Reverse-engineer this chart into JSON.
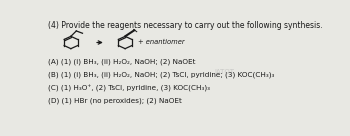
{
  "title": "(4) Provide the reagents necessary to carry out the following synthesis.",
  "answer_A": "(A) (1) (i) BH₃, (ii) H₂O₂, NaOH; (2) NaOEt",
  "answer_B": "(B) (1) (i) BH₃, (ii) H₂O₂, NaOH; (2) TsCl, pyridine; (3) KOC(CH₃)₃",
  "answer_C": "(C) (1) H₃O⁺, (2) TsCl, pyridine, (3) KOC(CH₃)₃",
  "answer_D": "(D) (1) HBr (no peroxides); (2) NaOEt",
  "enantiomer_label": "+ enantiomer",
  "bg_color": "#e8e8e3",
  "text_color": "#1a1a1a",
  "title_fontsize": 5.5,
  "body_fontsize": 5.2,
  "mol_lw": 0.9
}
